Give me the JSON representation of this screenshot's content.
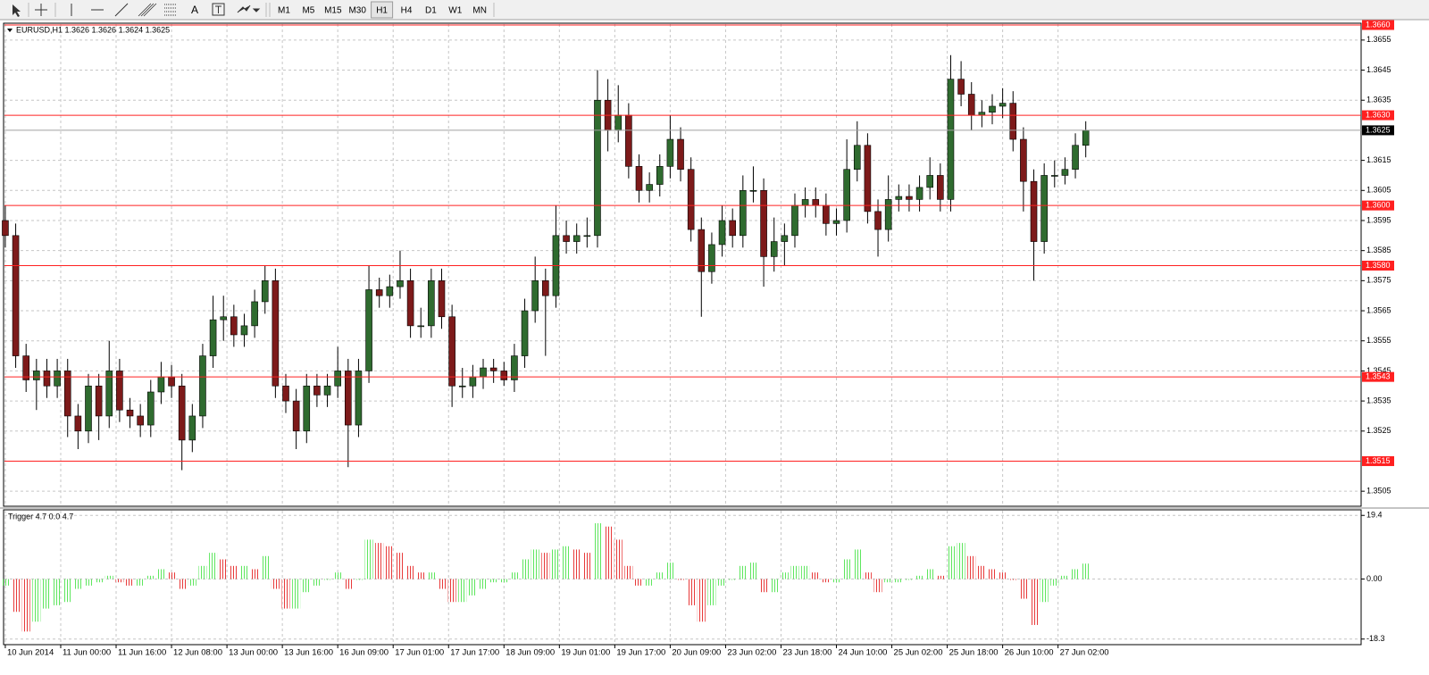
{
  "toolbar": {
    "text_tool": "A",
    "timeframes": [
      "M1",
      "M5",
      "M15",
      "M30",
      "H1",
      "H4",
      "D1",
      "W1",
      "MN"
    ],
    "active_timeframe": "H1"
  },
  "chart_data": [
    {
      "type": "candlestick",
      "title": "EURUSD,H1  1.3626 1.3626 1.3624 1.3625",
      "up_color": "#2f6b2f",
      "down_color": "#7d1a1a",
      "grid": true,
      "xlim": [
        -0.5,
        391
      ],
      "ylim": [
        1.35,
        1.36606
      ],
      "xticks": [
        {
          "value": 0,
          "label": "10 Jun 2014"
        },
        {
          "value": 16,
          "label": "11 Jun 00:00"
        },
        {
          "value": 32,
          "label": "11 Jun 16:00"
        },
        {
          "value": 48,
          "label": "12 Jun 08:00"
        },
        {
          "value": 64,
          "label": "13 Jun 00:00"
        },
        {
          "value": 80,
          "label": "13 Jun 16:00"
        },
        {
          "value": 96,
          "label": "16 Jun 09:00"
        },
        {
          "value": 112,
          "label": "17 Jun 01:00"
        },
        {
          "value": 128,
          "label": "17 Jun 17:00"
        },
        {
          "value": 144,
          "label": "18 Jun 09:00"
        },
        {
          "value": 160,
          "label": "19 Jun 01:00"
        },
        {
          "value": 176,
          "label": "19 Jun 17:00"
        },
        {
          "value": 192,
          "label": "20 Jun 09:00"
        },
        {
          "value": 208,
          "label": "23 Jun 02:00"
        },
        {
          "value": 224,
          "label": "23 Jun 18:00"
        },
        {
          "value": 240,
          "label": "24 Jun 10:00"
        },
        {
          "value": 256,
          "label": "25 Jun 02:00"
        },
        {
          "value": 272,
          "label": "25 Jun 18:00"
        },
        {
          "value": 288,
          "label": "26 Jun 10:00"
        },
        {
          "value": 304,
          "label": "27 Jun 02:00"
        }
      ],
      "yticks": [
        1.3505,
        1.3525,
        1.3535,
        1.3545,
        1.3555,
        1.3565,
        1.3575,
        1.3585,
        1.3595,
        1.3605,
        1.3615,
        1.3635,
        1.3645,
        1.3655
      ],
      "levels": [
        {
          "value": 1.366,
          "label": "1.3660"
        },
        {
          "value": 1.363,
          "label": "1.3630"
        },
        {
          "value": 1.36,
          "label": "1.3600"
        },
        {
          "value": 1.358,
          "label": "1.3580"
        },
        {
          "value": 1.3543,
          "label": "1.3543"
        },
        {
          "value": 1.3515,
          "label": "1.3515"
        }
      ],
      "level_color": "#ff2020",
      "current_price": 1.3625,
      "x": [
        0,
        3,
        6,
        9,
        12,
        15,
        18,
        21,
        24,
        27,
        30,
        33,
        36,
        39,
        42,
        45,
        48,
        51,
        54,
        57,
        60,
        63,
        66,
        69,
        72,
        75,
        78,
        81,
        84,
        87,
        90,
        93,
        96,
        99,
        102,
        105,
        108,
        111,
        114,
        117,
        120,
        123,
        126,
        129,
        132,
        135,
        138,
        141,
        144,
        147,
        150,
        153,
        156,
        159,
        162,
        165,
        168,
        171,
        174,
        177,
        180,
        183,
        186,
        189,
        192,
        195,
        198,
        201,
        204,
        207,
        210,
        213,
        216,
        219,
        222,
        225,
        228,
        231,
        234,
        237,
        240,
        243,
        246,
        249,
        252,
        255,
        258,
        261,
        264,
        267,
        270,
        273,
        276,
        279,
        282,
        285,
        288,
        291,
        294,
        297,
        300,
        303,
        306,
        309,
        312
      ],
      "open": [
        1.3595,
        1.359,
        1.355,
        1.3542,
        1.3545,
        1.354,
        1.3545,
        1.353,
        1.3525,
        1.354,
        1.353,
        1.3545,
        1.3532,
        1.353,
        1.3527,
        1.3538,
        1.3543,
        1.354,
        1.3522,
        1.353,
        1.355,
        1.3562,
        1.3563,
        1.3557,
        1.356,
        1.3568,
        1.3575,
        1.354,
        1.3535,
        1.3525,
        1.354,
        1.3537,
        1.354,
        1.3545,
        1.3527,
        1.3545,
        1.3572,
        1.357,
        1.3573,
        1.3575,
        1.356,
        1.356,
        1.3575,
        1.3563,
        1.354,
        1.354,
        1.3543,
        1.3546,
        1.3545,
        1.3542,
        1.355,
        1.3565,
        1.3575,
        1.357,
        1.359,
        1.3588,
        1.359,
        1.359,
        1.3635,
        1.3625,
        1.363,
        1.3613,
        1.3605,
        1.3607,
        1.3613,
        1.3622,
        1.3612,
        1.3592,
        1.3578,
        1.3587,
        1.3595,
        1.359,
        1.3605,
        1.3605,
        1.3583,
        1.3588,
        1.359,
        1.36,
        1.3602,
        1.36,
        1.3594,
        1.3595,
        1.3612,
        1.362,
        1.3598,
        1.3592,
        1.3602,
        1.3603,
        1.3602,
        1.3606,
        1.361,
        1.3602,
        1.3642,
        1.3637,
        1.363,
        1.3631,
        1.3633,
        1.3634,
        1.3622,
        1.3608,
        1.3588,
        1.361,
        1.361,
        1.3612,
        1.362
      ],
      "high": [
        1.36,
        1.3594,
        1.3554,
        1.3549,
        1.3549,
        1.3549,
        1.3549,
        1.3534,
        1.3544,
        1.3544,
        1.3555,
        1.3549,
        1.3536,
        1.3534,
        1.3542,
        1.3548,
        1.3547,
        1.3544,
        1.3534,
        1.3554,
        1.357,
        1.357,
        1.3567,
        1.3564,
        1.3572,
        1.358,
        1.3579,
        1.3544,
        1.3539,
        1.3544,
        1.3544,
        1.3544,
        1.3553,
        1.3549,
        1.3549,
        1.358,
        1.3576,
        1.3577,
        1.3585,
        1.3579,
        1.3566,
        1.3579,
        1.3579,
        1.3567,
        1.3546,
        1.3547,
        1.3549,
        1.3549,
        1.3548,
        1.3554,
        1.3569,
        1.3583,
        1.3579,
        1.36,
        1.3595,
        1.3594,
        1.3596,
        1.3645,
        1.3642,
        1.364,
        1.3634,
        1.3617,
        1.3611,
        1.3617,
        1.363,
        1.3626,
        1.3616,
        1.3596,
        1.3591,
        1.36,
        1.3599,
        1.361,
        1.3613,
        1.3609,
        1.3596,
        1.3594,
        1.3604,
        1.3606,
        1.3606,
        1.3604,
        1.3599,
        1.3622,
        1.3628,
        1.3624,
        1.3602,
        1.361,
        1.3607,
        1.3607,
        1.361,
        1.3616,
        1.3614,
        1.365,
        1.3648,
        1.3641,
        1.3635,
        1.3637,
        1.3639,
        1.3638,
        1.3626,
        1.3612,
        1.3614,
        1.3615,
        1.3616,
        1.3624,
        1.3628
      ],
      "low": [
        1.3586,
        1.3546,
        1.3538,
        1.3532,
        1.3536,
        1.3536,
        1.3523,
        1.3519,
        1.3521,
        1.3522,
        1.3526,
        1.3528,
        1.3526,
        1.3523,
        1.3523,
        1.3534,
        1.3536,
        1.3512,
        1.3518,
        1.3526,
        1.3546,
        1.3555,
        1.3553,
        1.3553,
        1.3556,
        1.3564,
        1.3536,
        1.3531,
        1.3519,
        1.3521,
        1.3533,
        1.3533,
        1.3536,
        1.3513,
        1.3523,
        1.3541,
        1.3566,
        1.3566,
        1.3569,
        1.3556,
        1.3556,
        1.3556,
        1.3559,
        1.3533,
        1.3536,
        1.3536,
        1.3539,
        1.3541,
        1.354,
        1.3538,
        1.3546,
        1.3561,
        1.355,
        1.3566,
        1.3584,
        1.3584,
        1.3586,
        1.3586,
        1.3618,
        1.3621,
        1.3609,
        1.3601,
        1.3601,
        1.3603,
        1.3609,
        1.3608,
        1.3588,
        1.3563,
        1.3574,
        1.3583,
        1.3586,
        1.3586,
        1.3601,
        1.3573,
        1.3578,
        1.358,
        1.3586,
        1.3596,
        1.3596,
        1.359,
        1.359,
        1.3591,
        1.3608,
        1.3594,
        1.3583,
        1.3588,
        1.3598,
        1.3598,
        1.3598,
        1.3602,
        1.3598,
        1.3598,
        1.3633,
        1.3625,
        1.3626,
        1.3627,
        1.3629,
        1.3618,
        1.3598,
        1.3575,
        1.3584,
        1.3606,
        1.3607,
        1.3609,
        1.3616
      ],
      "close": [
        1.359,
        1.355,
        1.3542,
        1.3545,
        1.354,
        1.3545,
        1.353,
        1.3525,
        1.354,
        1.353,
        1.3545,
        1.3532,
        1.353,
        1.3527,
        1.3538,
        1.3543,
        1.354,
        1.3522,
        1.353,
        1.355,
        1.3562,
        1.3563,
        1.3557,
        1.356,
        1.3568,
        1.3575,
        1.354,
        1.3535,
        1.3525,
        1.354,
        1.3537,
        1.354,
        1.3545,
        1.3527,
        1.3545,
        1.3572,
        1.357,
        1.3573,
        1.3575,
        1.356,
        1.356,
        1.3575,
        1.3563,
        1.354,
        1.354,
        1.3543,
        1.3546,
        1.3545,
        1.3542,
        1.355,
        1.3565,
        1.3575,
        1.357,
        1.359,
        1.3588,
        1.359,
        1.359,
        1.3635,
        1.3625,
        1.363,
        1.3613,
        1.3605,
        1.3607,
        1.3613,
        1.3622,
        1.3612,
        1.3592,
        1.3578,
        1.3587,
        1.3595,
        1.359,
        1.3605,
        1.3605,
        1.3583,
        1.3588,
        1.359,
        1.36,
        1.3602,
        1.36,
        1.3594,
        1.3595,
        1.3612,
        1.362,
        1.3598,
        1.3592,
        1.3602,
        1.3603,
        1.3602,
        1.3606,
        1.361,
        1.3602,
        1.3642,
        1.3637,
        1.363,
        1.3631,
        1.3633,
        1.3634,
        1.3622,
        1.3608,
        1.3588,
        1.361,
        1.361,
        1.3612,
        1.362,
        1.3625
      ]
    },
    {
      "type": "histogram",
      "title": "Trigger 4.7 0.0 4.7",
      "up_color": "#5ee65e",
      "down_color": "#e83a3a",
      "grid": true,
      "xlim": [
        -0.5,
        391
      ],
      "ylim": [
        -20,
        21.1
      ],
      "yticks": [
        -18.3,
        {
          "value": 0,
          "label": "0.00"
        },
        19.4
      ],
      "x": [
        0,
        3,
        6,
        9,
        12,
        15,
        18,
        21,
        24,
        27,
        30,
        33,
        36,
        39,
        42,
        45,
        48,
        51,
        54,
        57,
        60,
        63,
        66,
        69,
        72,
        75,
        78,
        81,
        84,
        87,
        90,
        93,
        96,
        99,
        102,
        105,
        108,
        111,
        114,
        117,
        120,
        123,
        126,
        129,
        132,
        135,
        138,
        141,
        144,
        147,
        150,
        153,
        156,
        159,
        162,
        165,
        168,
        171,
        174,
        177,
        180,
        183,
        186,
        189,
        192,
        195,
        198,
        201,
        204,
        207,
        210,
        213,
        216,
        219,
        222,
        225,
        228,
        231,
        234,
        237,
        240,
        243,
        246,
        249,
        252,
        255,
        258,
        261,
        264,
        267,
        270,
        273,
        276,
        279,
        282,
        285,
        288,
        291,
        294,
        297,
        300,
        303,
        306,
        309,
        312
      ],
      "values": [
        -2,
        -10,
        -16,
        -13,
        -9,
        -8,
        -7,
        -3,
        -2,
        -1,
        1,
        -1,
        -2,
        -2,
        1,
        3,
        2,
        -3,
        -2,
        4,
        8,
        6,
        4,
        4,
        3,
        7,
        -3,
        -9,
        -9,
        -4,
        -2,
        0,
        2,
        -3,
        0,
        12,
        11,
        10,
        8,
        4,
        2,
        2,
        -3,
        -7,
        -7,
        -5,
        -3,
        -1,
        -1,
        2,
        6,
        9,
        8,
        9,
        10,
        9,
        8,
        17,
        16,
        12,
        4,
        -2,
        -2,
        2,
        5,
        0,
        -8,
        -13,
        -8,
        -2,
        0,
        4,
        5,
        -4,
        -4,
        2,
        4,
        4,
        2,
        -1,
        -1,
        6,
        9,
        2,
        -4,
        -1,
        -1,
        0,
        1,
        3,
        1,
        10,
        11,
        7,
        4,
        3,
        2,
        0,
        -6,
        -14,
        -7,
        -2,
        1,
        3,
        4.7
      ]
    }
  ]
}
